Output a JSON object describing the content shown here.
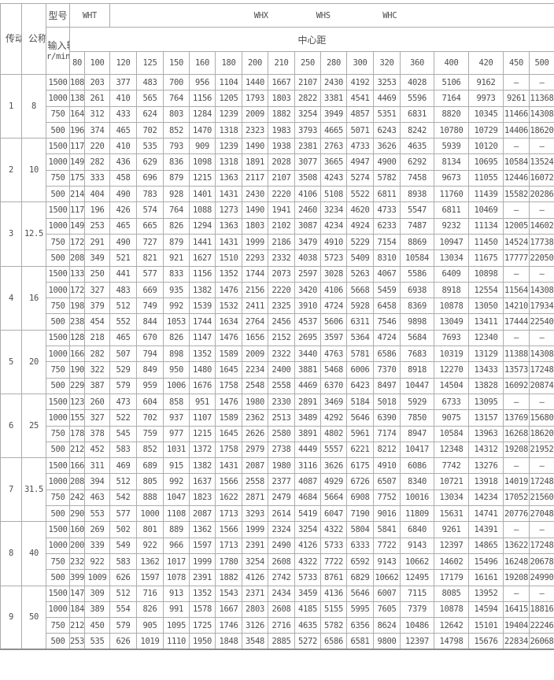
{
  "table": {
    "col1_header": "传动比代号",
    "col2_header": "公称传动比",
    "model_label": "型号",
    "models": {
      "wht": "WHT",
      "whx": "WHX",
      "whs": "WHS",
      "whc": "WHC"
    },
    "input_speed_label": "输入转速",
    "speed_unit": "r/min",
    "center_distance_label": "中心距",
    "center_distances": [
      "80",
      "100",
      "120",
      "125",
      "150",
      "160",
      "180",
      "200",
      "210",
      "250",
      "280",
      "300",
      "320",
      "360",
      "400",
      "420",
      "450",
      "500"
    ],
    "dash": "—",
    "groups": [
      {
        "code": "1",
        "ratio": "8",
        "rows": [
          {
            "speed": "1500",
            "values": [
              "108",
              "203",
              "377",
              "483",
              "700",
              "956",
              "1104",
              "1440",
              "1667",
              "2107",
              "2430",
              "4192",
              "3253",
              "4028",
              "5106",
              "9162",
              "—",
              "—"
            ]
          },
          {
            "speed": "1000",
            "values": [
              "138",
              "261",
              "410",
              "565",
              "764",
              "1156",
              "1205",
              "1793",
              "1803",
              "2822",
              "3381",
              "4541",
              "4469",
              "5596",
              "7164",
              "9973",
              "9261",
              "11368"
            ]
          },
          {
            "speed": "750",
            "values": [
              "164",
              "312",
              "433",
              "624",
              "803",
              "1284",
              "1239",
              "2009",
              "1882",
              "3254",
              "3949",
              "4857",
              "5351",
              "6831",
              "8820",
              "10345",
              "11466",
              "14308"
            ]
          },
          {
            "speed": "500",
            "values": [
              "196",
              "374",
              "465",
              "702",
              "852",
              "1470",
              "1318",
              "2323",
              "1983",
              "3793",
              "4665",
              "5071",
              "6243",
              "8242",
              "10780",
              "10729",
              "14406",
              "18620"
            ]
          }
        ]
      },
      {
        "code": "2",
        "ratio": "10",
        "rows": [
          {
            "speed": "1500",
            "values": [
              "117",
              "220",
              "410",
              "535",
              "793",
              "909",
              "1239",
              "1490",
              "1938",
              "2381",
              "2763",
              "4733",
              "3626",
              "4635",
              "5939",
              "10120",
              "—",
              "—"
            ]
          },
          {
            "speed": "1000",
            "values": [
              "149",
              "282",
              "436",
              "629",
              "836",
              "1098",
              "1318",
              "1891",
              "2028",
              "3077",
              "3665",
              "4947",
              "4900",
              "6292",
              "8134",
              "10695",
              "10584",
              "13524"
            ]
          },
          {
            "speed": "750",
            "values": [
              "175",
              "333",
              "458",
              "696",
              "879",
              "1215",
              "1363",
              "2117",
              "2107",
              "3508",
              "4243",
              "5274",
              "5782",
              "7458",
              "9673",
              "11055",
              "12446",
              "16072"
            ]
          },
          {
            "speed": "500",
            "values": [
              "214",
              "404",
              "490",
              "783",
              "928",
              "1401",
              "1431",
              "2430",
              "2220",
              "4106",
              "5108",
              "5522",
              "6811",
              "8938",
              "11760",
              "11439",
              "15582",
              "20286"
            ]
          }
        ]
      },
      {
        "code": "3",
        "ratio": "12.5",
        "rows": [
          {
            "speed": "1500",
            "values": [
              "117",
              "196",
              "426",
              "574",
              "764",
              "1088",
              "1273",
              "1490",
              "1941",
              "2460",
              "3234",
              "4620",
              "4733",
              "5547",
              "6811",
              "10469",
              "—",
              "—"
            ]
          },
          {
            "speed": "1000",
            "values": [
              "149",
              "253",
              "465",
              "665",
              "826",
              "1294",
              "1363",
              "1803",
              "2102",
              "3087",
              "4234",
              "4924",
              "6233",
              "7487",
              "9232",
              "11134",
              "12005",
              "14602"
            ]
          },
          {
            "speed": "750",
            "values": [
              "172",
              "291",
              "490",
              "727",
              "879",
              "1441",
              "1431",
              "1999",
              "2186",
              "3479",
              "4910",
              "5229",
              "7154",
              "8869",
              "10947",
              "11450",
              "14524",
              "17738"
            ]
          },
          {
            "speed": "500",
            "values": [
              "208",
              "349",
              "521",
              "821",
              "921",
              "1627",
              "1510",
              "2293",
              "2332",
              "4038",
              "5723",
              "5409",
              "8310",
              "10584",
              "13034",
              "11675",
              "17777",
              "22050"
            ]
          }
        ]
      },
      {
        "code": "4",
        "ratio": "16",
        "rows": [
          {
            "speed": "1500",
            "values": [
              "133",
              "250",
              "441",
              "577",
              "833",
              "1156",
              "1352",
              "1744",
              "2073",
              "2597",
              "3028",
              "5263",
              "4067",
              "5586",
              "6409",
              "10898",
              "—",
              "—"
            ]
          },
          {
            "speed": "1000",
            "values": [
              "172",
              "327",
              "483",
              "669",
              "935",
              "1382",
              "1476",
              "2156",
              "2220",
              "3420",
              "4106",
              "5668",
              "5459",
              "6938",
              "8918",
              "12554",
              "11564",
              "14308"
            ]
          },
          {
            "speed": "750",
            "values": [
              "198",
              "379",
              "512",
              "749",
              "992",
              "1539",
              "1532",
              "2411",
              "2325",
              "3910",
              "4724",
              "5928",
              "6458",
              "8369",
              "10878",
              "13050",
              "14210",
              "17934"
            ]
          },
          {
            "speed": "500",
            "values": [
              "238",
              "454",
              "552",
              "844",
              "1053",
              "1744",
              "1634",
              "2764",
              "2456",
              "4537",
              "5606",
              "6311",
              "7546",
              "9898",
              "13049",
              "13411",
              "17444",
              "22540"
            ]
          }
        ]
      },
      {
        "code": "5",
        "ratio": "20",
        "rows": [
          {
            "speed": "1500",
            "values": [
              "128",
              "218",
              "465",
              "670",
              "826",
              "1147",
              "1476",
              "1656",
              "2152",
              "2695",
              "3597",
              "5364",
              "4724",
              "5684",
              "7693",
              "12340",
              "—",
              "—"
            ]
          },
          {
            "speed": "1000",
            "values": [
              "166",
              "282",
              "507",
              "794",
              "898",
              "1352",
              "1589",
              "2009",
              "2322",
              "3440",
              "4763",
              "5781",
              "6586",
              "7683",
              "10319",
              "13129",
              "11388",
              "14308"
            ]
          },
          {
            "speed": "750",
            "values": [
              "190",
              "322",
              "529",
              "849",
              "950",
              "1480",
              "1645",
              "2234",
              "2400",
              "3881",
              "5468",
              "6006",
              "7370",
              "8918",
              "12270",
              "13433",
              "13573",
              "17248"
            ]
          },
          {
            "speed": "500",
            "values": [
              "229",
              "387",
              "579",
              "959",
              "1006",
              "1676",
              "1758",
              "2548",
              "2558",
              "4469",
              "6370",
              "6423",
              "8497",
              "10447",
              "14504",
              "13828",
              "16092",
              "20874"
            ]
          }
        ]
      },
      {
        "code": "6",
        "ratio": "25",
        "rows": [
          {
            "speed": "1500",
            "values": [
              "123",
              "260",
              "473",
              "604",
              "858",
              "951",
              "1476",
              "1980",
              "2330",
              "2891",
              "3469",
              "5184",
              "5018",
              "5929",
              "6733",
              "13095",
              "—",
              "—"
            ]
          },
          {
            "speed": "1000",
            "values": [
              "155",
              "327",
              "522",
              "702",
              "937",
              "1107",
              "1589",
              "2362",
              "2513",
              "3489",
              "4292",
              "5646",
              "6390",
              "7850",
              "9075",
              "13157",
              "13769",
              "15680"
            ]
          },
          {
            "speed": "750",
            "values": [
              "178",
              "378",
              "545",
              "759",
              "977",
              "1215",
              "1645",
              "2626",
              "2580",
              "3891",
              "4802",
              "5961",
              "7174",
              "8947",
              "10584",
              "13963",
              "16268",
              "18620"
            ]
          },
          {
            "speed": "500",
            "values": [
              "212",
              "452",
              "583",
              "852",
              "1031",
              "1372",
              "1758",
              "2979",
              "2738",
              "4449",
              "5557",
              "6221",
              "8212",
              "10417",
              "12348",
              "14312",
              "19208",
              "21952"
            ]
          }
        ]
      },
      {
        "code": "7",
        "ratio": "31.5",
        "rows": [
          {
            "speed": "1500",
            "values": [
              "166",
              "311",
              "469",
              "689",
              "915",
              "1382",
              "1431",
              "2087",
              "1980",
              "3116",
              "3626",
              "6175",
              "4910",
              "6086",
              "7742",
              "13276",
              "—",
              "—"
            ]
          },
          {
            "speed": "1000",
            "values": [
              "208",
              "394",
              "512",
              "805",
              "992",
              "1637",
              "1566",
              "2558",
              "2377",
              "4087",
              "4929",
              "6726",
              "6507",
              "8340",
              "10721",
              "13918",
              "14019",
              "17248"
            ]
          },
          {
            "speed": "750",
            "values": [
              "242",
              "463",
              "542",
              "888",
              "1047",
              "1823",
              "1622",
              "2871",
              "2479",
              "4684",
              "5664",
              "6908",
              "7752",
              "10016",
              "13034",
              "14234",
              "17052",
              "21560"
            ]
          },
          {
            "speed": "500",
            "values": [
              "290",
              "553",
              "577",
              "1000",
              "1108",
              "2087",
              "1713",
              "3293",
              "2614",
              "5419",
              "6047",
              "7190",
              "9016",
              "11809",
              "15631",
              "14741",
              "20776",
              "27048"
            ]
          }
        ]
      },
      {
        "code": "8",
        "ratio": "40",
        "rows": [
          {
            "speed": "1500",
            "values": [
              "160",
              "269",
              "502",
              "801",
              "889",
              "1362",
              "1566",
              "1999",
              "2324",
              "3254",
              "4322",
              "5804",
              "5841",
              "6840",
              "9261",
              "14391",
              "—",
              "—"
            ]
          },
          {
            "speed": "1000",
            "values": [
              "200",
              "339",
              "549",
              "922",
              "966",
              "1597",
              "1713",
              "2391",
              "2490",
              "4126",
              "5733",
              "6333",
              "7722",
              "9143",
              "12397",
              "14865",
              "13622",
              "17248"
            ]
          },
          {
            "speed": "750",
            "values": [
              "232",
              "922",
              "583",
              "1362",
              "1017",
              "1999",
              "1780",
              "3254",
              "2608",
              "4322",
              "7722",
              "6592",
              "9143",
              "10662",
              "14602",
              "15496",
              "16248",
              "20678"
            ]
          },
          {
            "speed": "500",
            "values": [
              "399",
              "1009",
              "626",
              "1597",
              "1078",
              "2391",
              "1882",
              "4126",
              "2742",
              "5733",
              "8761",
              "6829",
              "10662",
              "12495",
              "17179",
              "16161",
              "19208",
              "24990"
            ]
          }
        ]
      },
      {
        "code": "9",
        "ratio": "50",
        "rows": [
          {
            "speed": "1500",
            "values": [
              "147",
              "309",
              "512",
              "716",
              "913",
              "1352",
              "1543",
              "2371",
              "2434",
              "3459",
              "4136",
              "5646",
              "6007",
              "7115",
              "8085",
              "13952",
              "—",
              "—"
            ]
          },
          {
            "speed": "1000",
            "values": [
              "184",
              "389",
              "554",
              "826",
              "991",
              "1578",
              "1667",
              "2803",
              "2608",
              "4185",
              "5155",
              "5995",
              "7605",
              "7379",
              "10878",
              "14594",
              "16415",
              "18816"
            ]
          },
          {
            "speed": "750",
            "values": [
              "212",
              "450",
              "579",
              "905",
              "1095",
              "1725",
              "1746",
              "3126",
              "2716",
              "4635",
              "5782",
              "6356",
              "8624",
              "10486",
              "12642",
              "15101",
              "19404",
              "22246"
            ]
          },
          {
            "speed": "500",
            "values": [
              "253",
              "535",
              "626",
              "1019",
              "1110",
              "1950",
              "1848",
              "3548",
              "2885",
              "5272",
              "6586",
              "6581",
              "9800",
              "12397",
              "14798",
              "15676",
              "22834",
              "26068"
            ]
          }
        ]
      }
    ],
    "colors": {
      "text": "#4d4d4d",
      "border": "#acacac",
      "background": "#ffffff"
    }
  }
}
